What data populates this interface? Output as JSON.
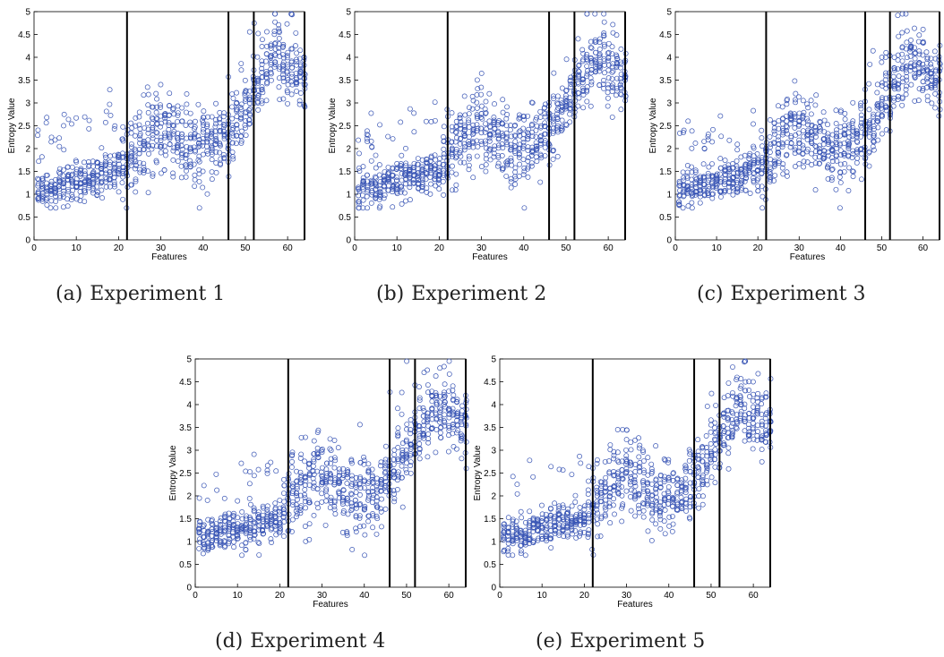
{
  "chart_data": [
    {
      "type": "scatter",
      "caption_tag": "(a)",
      "caption_text": "Experiment 1",
      "xlabel": "Features",
      "ylabel": "Entropy Value",
      "xlim": [
        0,
        64
      ],
      "ylim": [
        0,
        5
      ],
      "xticks": [
        0,
        10,
        20,
        30,
        40,
        50,
        60
      ],
      "yticks": [
        0,
        0.5,
        1,
        1.5,
        2,
        2.5,
        3,
        3.5,
        4,
        4.5,
        5
      ],
      "vlines": [
        22,
        46,
        52,
        64
      ],
      "marker": "open circle",
      "marker_color": "#3a56b5",
      "seed": 11
    },
    {
      "type": "scatter",
      "caption_tag": "(b)",
      "caption_text": "Experiment 2",
      "xlabel": "Features",
      "ylabel": "Entropy Value",
      "xlim": [
        0,
        64
      ],
      "ylim": [
        0,
        5
      ],
      "xticks": [
        0,
        10,
        20,
        30,
        40,
        50,
        60
      ],
      "yticks": [
        0,
        0.5,
        1,
        1.5,
        2,
        2.5,
        3,
        3.5,
        4,
        4.5,
        5
      ],
      "vlines": [
        22,
        46,
        52,
        64
      ],
      "marker": "open circle",
      "marker_color": "#3a56b5",
      "seed": 23
    },
    {
      "type": "scatter",
      "caption_tag": "(c)",
      "caption_text": "Experiment 3",
      "xlabel": "Features",
      "ylabel": "Entropy Value",
      "xlim": [
        0,
        64
      ],
      "ylim": [
        0,
        5
      ],
      "xticks": [
        0,
        10,
        20,
        30,
        40,
        50,
        60
      ],
      "yticks": [
        0,
        0.5,
        1,
        1.5,
        2,
        2.5,
        3,
        3.5,
        4,
        4.5,
        5
      ],
      "vlines": [
        22,
        46,
        52,
        64
      ],
      "marker": "open circle",
      "marker_color": "#3a56b5",
      "seed": 37
    },
    {
      "type": "scatter",
      "caption_tag": "(d)",
      "caption_text": "Experiment 4",
      "xlabel": "Features",
      "ylabel": "Entropy Value",
      "xlim": [
        0,
        64
      ],
      "ylim": [
        0,
        5
      ],
      "xticks": [
        0,
        10,
        20,
        30,
        40,
        50,
        60
      ],
      "yticks": [
        0,
        0.5,
        1,
        1.5,
        2,
        2.5,
        3,
        3.5,
        4,
        4.5,
        5
      ],
      "vlines": [
        22,
        46,
        52,
        64
      ],
      "marker": "open circle",
      "marker_color": "#3a56b5",
      "seed": 41
    },
    {
      "type": "scatter",
      "caption_tag": "(e)",
      "caption_text": "Experiment 5",
      "xlabel": "Features",
      "ylabel": "Entropy Value",
      "xlim": [
        0,
        64
      ],
      "ylim": [
        0,
        5
      ],
      "xticks": [
        0,
        10,
        20,
        30,
        40,
        50,
        60
      ],
      "yticks": [
        0,
        0.5,
        1,
        1.5,
        2,
        2.5,
        3,
        3.5,
        4,
        4.5,
        5
      ],
      "vlines": [
        22,
        46,
        52,
        64
      ],
      "marker": "open circle",
      "marker_color": "#3a56b5",
      "seed": 53
    }
  ]
}
